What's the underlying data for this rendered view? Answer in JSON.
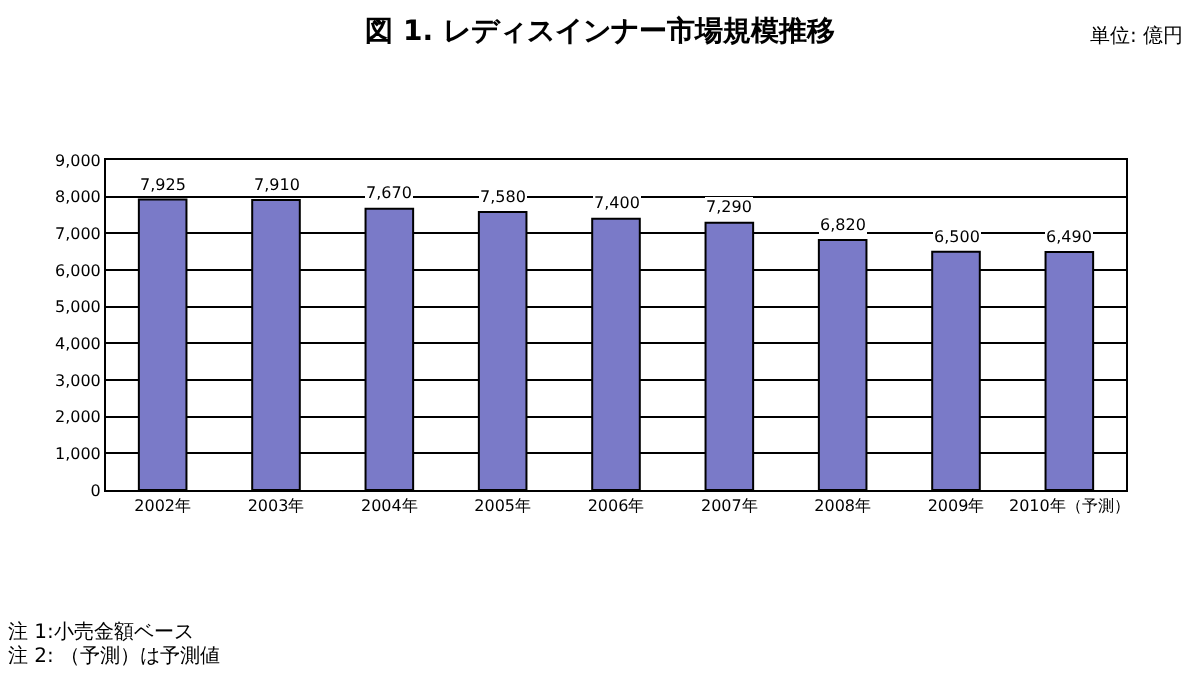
{
  "chart_data": {
    "type": "bar",
    "title": "図 1. レディスインナー市場規模推移",
    "categories": [
      "2002年",
      "2003年",
      "2004年",
      "2005年",
      "2006年",
      "2007年",
      "2008年",
      "2009年",
      "2010年（予測）"
    ],
    "values": [
      7925,
      7910,
      7670,
      7580,
      7400,
      7290,
      6820,
      6500,
      6490
    ],
    "value_labels": [
      "7,925",
      "7,910",
      "7,670",
      "7,580",
      "7,400",
      "7,290",
      "6,820",
      "6,500",
      "6,490"
    ],
    "color": "#7a7ac8",
    "ylim": [
      0,
      9000
    ],
    "yticks": [
      {
        "value": 0,
        "label": "0"
      },
      {
        "value": 1000,
        "label": "1,000"
      },
      {
        "value": 2000,
        "label": "2,000"
      },
      {
        "value": 3000,
        "label": "3,000"
      },
      {
        "value": 4000,
        "label": "4,000"
      },
      {
        "value": 5000,
        "label": "5,000"
      },
      {
        "value": 6000,
        "label": "6,000"
      },
      {
        "value": 7000,
        "label": "7,000"
      },
      {
        "value": 8000,
        "label": "8,000"
      },
      {
        "value": 9000,
        "label": "9,000"
      }
    ],
    "grid": "y",
    "annotations": [
      "単位: 億円",
      "注 1:小売金額ベース",
      "注 2: （予測）は予測値"
    ]
  }
}
